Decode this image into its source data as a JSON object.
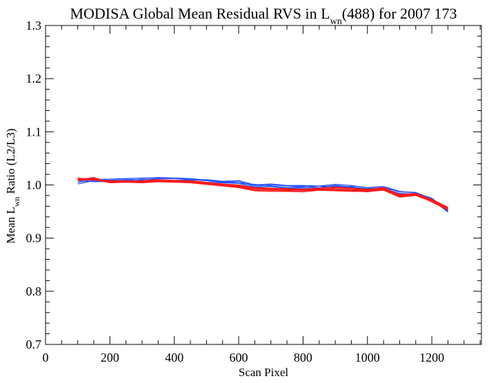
{
  "chart_data": {
    "type": "line",
    "title": {
      "main": "MODISA Global Mean Residual RVS in L",
      "sub": "wn",
      "rest": "(488) for 2007 173"
    },
    "xlabel": "Scan Pixel",
    "ylabel": {
      "pre": "Mean L",
      "sub": "wn",
      "post": " Ratio (L2/L3)"
    },
    "xlim": [
      0,
      1354
    ],
    "ylim": [
      0.7,
      1.3
    ],
    "x_ticks": [
      0,
      200,
      400,
      600,
      800,
      1000,
      1200
    ],
    "x_tick_labels": [
      "0",
      "200",
      "400",
      "600",
      "800",
      "1000",
      "1200"
    ],
    "y_ticks": [
      0.7,
      0.8,
      0.9,
      1.0,
      1.1,
      1.2,
      1.3
    ],
    "y_tick_labels": [
      "0.7",
      "0.8",
      "0.9",
      "1.0",
      "1.1",
      "1.2",
      "1.3"
    ],
    "grid": false,
    "colors": {
      "blue": "#1f4fff",
      "red": "#ff1a1a",
      "axis": "#000000"
    },
    "x": [
      100,
      150,
      200,
      250,
      300,
      350,
      400,
      450,
      500,
      550,
      600,
      650,
      700,
      750,
      800,
      850,
      900,
      950,
      1000,
      1050,
      1100,
      1150,
      1200,
      1250
    ],
    "series": [
      {
        "color": "blue",
        "values": [
          1.005,
          1.01,
          1.009,
          1.01,
          1.01,
          1.012,
          1.012,
          1.01,
          1.008,
          1.005,
          1.006,
          0.998,
          1.0,
          0.998,
          0.997,
          0.995,
          0.999,
          0.996,
          0.993,
          0.995,
          0.987,
          0.986,
          0.974,
          0.951
        ]
      },
      {
        "color": "blue",
        "values": [
          1.008,
          1.006,
          1.007,
          1.008,
          1.011,
          1.01,
          1.009,
          1.009,
          1.01,
          1.007,
          1.003,
          1.001,
          0.998,
          0.995,
          0.996,
          0.998,
          0.996,
          0.997,
          0.991,
          0.993,
          0.984,
          0.983,
          0.973,
          0.953
        ]
      },
      {
        "color": "blue",
        "values": [
          1.002,
          1.008,
          1.005,
          1.007,
          1.008,
          1.009,
          1.008,
          1.006,
          1.005,
          1.004,
          1.003,
          0.996,
          0.997,
          0.994,
          0.994,
          0.994,
          0.997,
          0.995,
          0.991,
          0.992,
          0.983,
          0.982,
          0.972,
          0.949
        ]
      },
      {
        "color": "blue",
        "values": [
          1.009,
          1.01,
          1.011,
          1.012,
          1.013,
          1.014,
          1.013,
          1.012,
          1.009,
          1.007,
          1.008,
          1.0,
          1.002,
          0.999,
          0.999,
          0.998,
          1.001,
          0.999,
          0.995,
          0.997,
          0.988,
          0.985,
          0.975,
          0.952
        ]
      },
      {
        "color": "red",
        "values": [
          1.012,
          1.012,
          1.006,
          1.007,
          1.007,
          1.009,
          1.008,
          1.007,
          1.004,
          1.002,
          0.999,
          0.994,
          0.993,
          0.992,
          0.99,
          0.99,
          0.995,
          0.993,
          0.991,
          0.994,
          0.981,
          0.983,
          0.971,
          0.955
        ]
      },
      {
        "color": "red",
        "values": [
          1.01,
          1.014,
          1.005,
          1.006,
          1.006,
          1.008,
          1.007,
          1.006,
          1.003,
          1.0,
          0.997,
          0.991,
          0.99,
          0.99,
          0.989,
          0.992,
          0.991,
          0.99,
          0.989,
          0.992,
          0.978,
          0.982,
          0.97,
          0.957
        ]
      },
      {
        "color": "red",
        "values": [
          1.008,
          1.011,
          1.004,
          1.005,
          1.004,
          1.006,
          1.005,
          1.004,
          1.001,
          0.998,
          0.995,
          0.989,
          0.988,
          0.988,
          0.987,
          0.99,
          0.989,
          0.988,
          0.988,
          0.99,
          0.977,
          0.98,
          0.969,
          0.954
        ]
      },
      {
        "color": "red",
        "values": [
          1.011,
          1.009,
          1.007,
          1.008,
          1.006,
          1.009,
          1.009,
          1.007,
          1.004,
          1.001,
          0.998,
          0.993,
          0.992,
          0.991,
          0.991,
          0.993,
          0.993,
          0.991,
          0.99,
          0.993,
          0.98,
          0.981,
          0.972,
          0.956
        ]
      },
      {
        "color": "red",
        "values": [
          1.009,
          1.013,
          1.006,
          1.006,
          1.005,
          1.007,
          1.006,
          1.005,
          1.002,
          0.999,
          0.996,
          0.99,
          0.991,
          0.989,
          0.99,
          0.991,
          0.99,
          0.989,
          0.987,
          0.991,
          0.979,
          0.982,
          0.968,
          0.953
        ]
      },
      {
        "color": "red",
        "values": [
          1.013,
          1.01,
          1.008,
          1.007,
          1.008,
          1.01,
          1.008,
          1.008,
          1.005,
          1.002,
          1.0,
          0.995,
          0.994,
          0.993,
          0.992,
          0.994,
          0.996,
          0.994,
          0.992,
          0.995,
          0.982,
          0.984,
          0.973,
          0.958
        ]
      }
    ]
  }
}
